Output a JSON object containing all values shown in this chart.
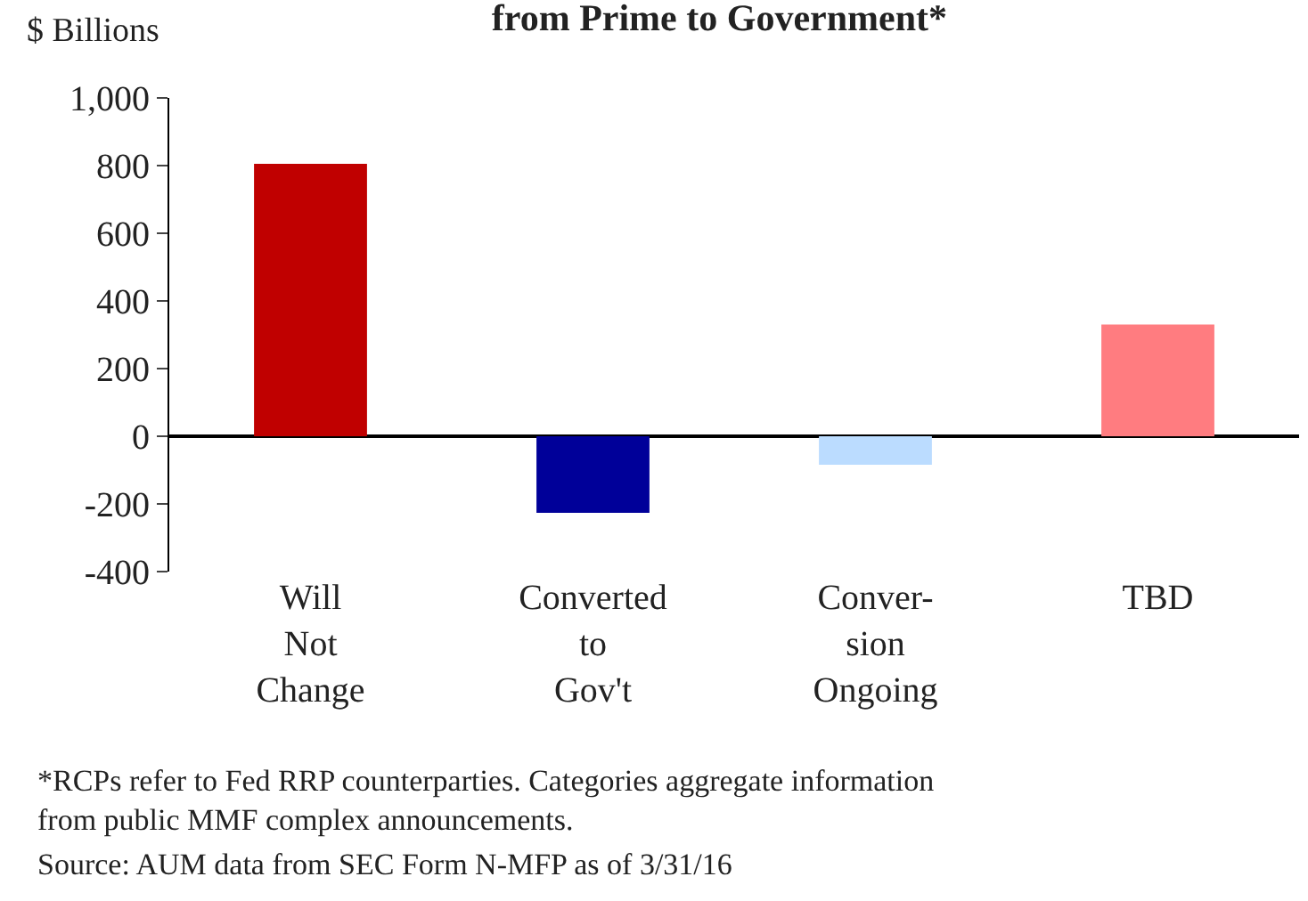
{
  "chart_data": {
    "type": "bar",
    "title": "from Prime to Government*",
    "ylabel": "$ Billions",
    "categories": [
      "Will\nNot\nChange",
      "Converted\nto\nGov't",
      "Conver-\nsion\nOngoing",
      "TBD"
    ],
    "values": [
      805,
      -226,
      -84,
      330
    ],
    "colors": [
      "#c00000",
      "#000099",
      "#bbdcff",
      "#ff7c80"
    ],
    "ylim": [
      -400,
      1000
    ],
    "yticks": [
      -400,
      -200,
      0,
      200,
      400,
      600,
      800,
      {
        "value": 1000,
        "label": "1,000"
      }
    ],
    "legend": false,
    "annotations": [
      "*RCPs refer to Fed RRP counterparties. Categories aggregate information\nfrom public MMF complex announcements.",
      "Source: AUM data from SEC Form N-MFP as of 3/31/16"
    ]
  }
}
